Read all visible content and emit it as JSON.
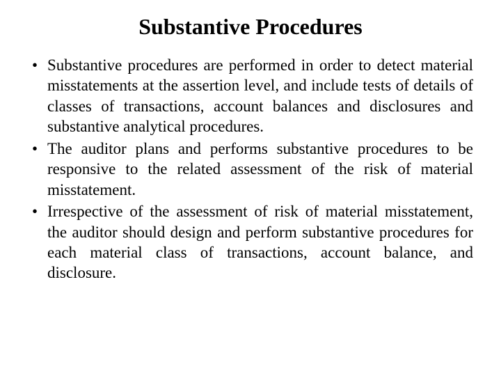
{
  "slide": {
    "title": "Substantive Procedures",
    "bullets": [
      "Substantive procedures are performed in order to detect material misstatements at the assertion level, and include tests of details of classes of transactions, account balances and disclosures and substantive analytical procedures.",
      "The auditor plans and performs substantive procedures to be responsive to the related assessment of the risk of material misstatement.",
      "Irrespective of the assessment of risk of material misstatement, the auditor should design and perform substantive procedures for each material class of transactions, account balance, and disclosure."
    ],
    "styling": {
      "background_color": "#ffffff",
      "text_color": "#000000",
      "font_family": "Times New Roman",
      "title_fontsize": 32,
      "title_fontweight": "bold",
      "body_fontsize": 23,
      "body_lineheight": 1.28,
      "text_align": "justify",
      "bullet_marker": "•",
      "slide_width": 720,
      "slide_height": 540
    }
  }
}
